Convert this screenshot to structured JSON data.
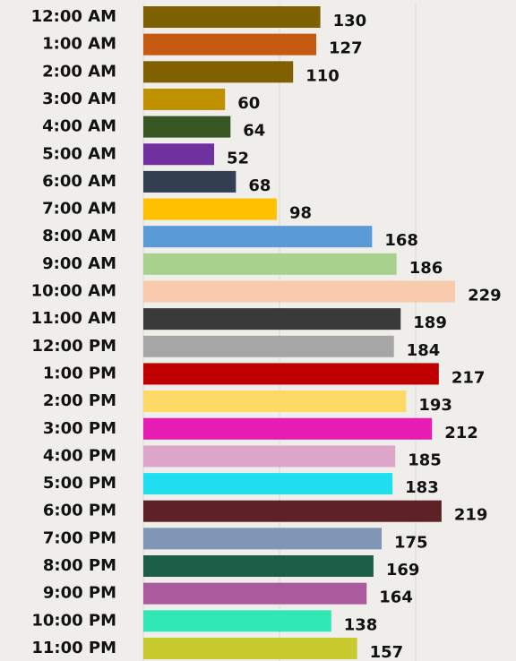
{
  "chart_data": {
    "type": "barh",
    "categories": [
      "12:00 AM",
      "1:00 AM",
      "2:00 AM",
      "3:00 AM",
      "4:00 AM",
      "5:00 AM",
      "6:00 AM",
      "7:00 AM",
      "8:00 AM",
      "9:00 AM",
      "10:00 AM",
      "11:00 AM",
      "12:00 PM",
      "1:00 PM",
      "2:00 PM",
      "3:00 PM",
      "4:00 PM",
      "5:00 PM",
      "6:00 PM",
      "7:00 PM",
      "8:00 PM",
      "9:00 PM",
      "10:00 PM",
      "11:00 PM"
    ],
    "values": [
      130,
      127,
      110,
      60,
      64,
      52,
      68,
      98,
      168,
      186,
      229,
      189,
      184,
      217,
      193,
      212,
      185,
      183,
      219,
      175,
      169,
      164,
      138,
      157
    ],
    "colors": [
      "#7f6000",
      "#c55a11",
      "#806000",
      "#bf9000",
      "#375623",
      "#7030a0",
      "#333f50",
      "#ffc000",
      "#5b9bd5",
      "#a9d18e",
      "#f8cbad",
      "#3a3a3a",
      "#a6a6a6",
      "#c00000",
      "#ffd966",
      "#e61cb4",
      "#dda6c8",
      "#1fdfee",
      "#5e2125",
      "#8096b4",
      "#1c5e48",
      "#ac5a9e",
      "#2fe8b5",
      "#c7c92d"
    ],
    "xlim": [
      0,
      250
    ],
    "xticks": [
      0,
      100,
      200
    ],
    "grid": true
  }
}
